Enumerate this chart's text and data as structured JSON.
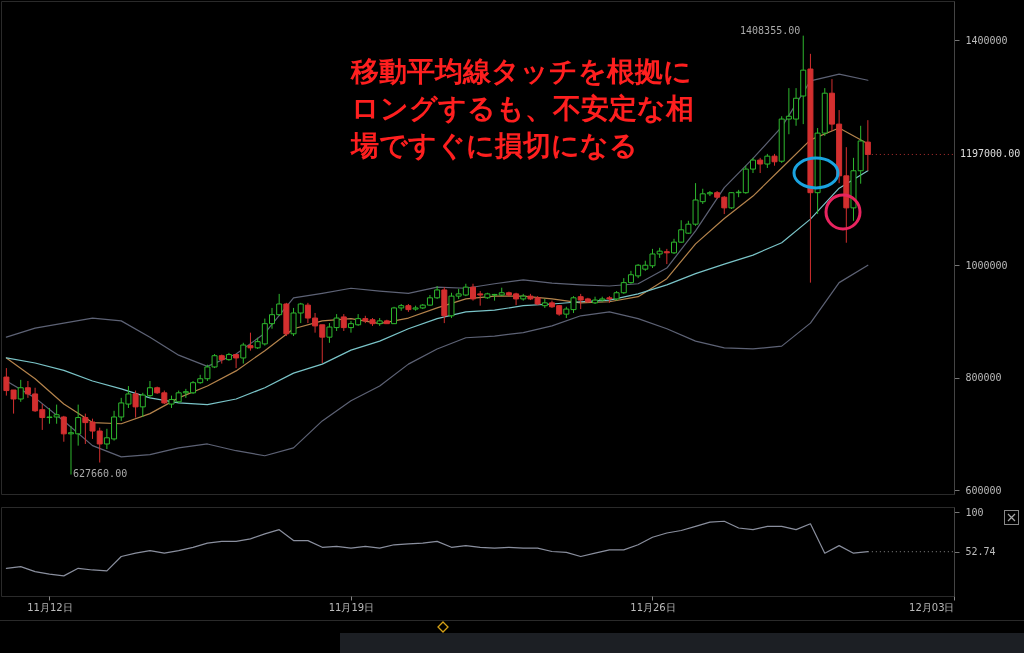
{
  "chart_data": [
    {
      "type": "candlestick",
      "x": [
        "--11-11T00:00",
        "--11-11T04:00",
        "--11-11T08:00",
        "--11-11T12:00",
        "--11-11T16:00",
        "--11-11T20:00",
        "--11-12T00:00",
        "--11-12T04:00",
        "--11-12T08:00",
        "--11-12T12:00",
        "--11-12T16:00",
        "--11-12T20:00",
        "--11-13T00:00",
        "--11-13T04:00",
        "--11-13T08:00",
        "--11-13T12:00",
        "--11-13T16:00",
        "--11-13T20:00",
        "--11-14T00:00",
        "--11-14T04:00",
        "--11-14T08:00",
        "--11-14T12:00",
        "--11-14T16:00",
        "--11-14T20:00",
        "--11-15T00:00",
        "--11-15T04:00",
        "--11-15T08:00",
        "--11-15T12:00",
        "--11-15T16:00",
        "--11-15T20:00",
        "--11-16T00:00",
        "--11-16T04:00",
        "--11-16T08:00",
        "--11-16T12:00",
        "--11-16T16:00",
        "--11-16T20:00",
        "--11-17T00:00",
        "--11-17T04:00",
        "--11-17T08:00",
        "--11-17T12:00",
        "--11-17T16:00",
        "--11-17T20:00",
        "--11-18T00:00",
        "--11-18T04:00",
        "--11-18T08:00",
        "--11-18T12:00",
        "--11-18T16:00",
        "--11-18T20:00",
        "--11-19T00:00",
        "--11-19T04:00",
        "--11-19T08:00",
        "--11-19T12:00",
        "--11-19T16:00",
        "--11-19T20:00",
        "--11-20T00:00",
        "--11-20T04:00",
        "--11-20T08:00",
        "--11-20T12:00",
        "--11-20T16:00",
        "--11-20T20:00",
        "--11-21T00:00",
        "--11-21T04:00",
        "--11-21T08:00",
        "--11-21T12:00",
        "--11-21T16:00",
        "--11-21T20:00",
        "--11-22T00:00",
        "--11-22T04:00",
        "--11-22T08:00",
        "--11-22T12:00",
        "--11-22T16:00",
        "--11-22T20:00",
        "--11-23T00:00",
        "--11-23T04:00",
        "--11-23T08:00",
        "--11-23T12:00",
        "--11-23T16:00",
        "--11-23T20:00",
        "--11-24T00:00",
        "--11-24T04:00",
        "--11-24T08:00",
        "--11-24T12:00",
        "--11-24T16:00",
        "--11-24T20:00",
        "--11-25T00:00",
        "--11-25T04:00",
        "--11-25T08:00",
        "--11-25T12:00",
        "--11-25T16:00",
        "--11-25T20:00",
        "--11-26T00:00",
        "--11-26T04:00",
        "--11-26T08:00",
        "--11-26T12:00",
        "--11-26T16:00",
        "--11-26T20:00",
        "--11-27T00:00",
        "--11-27T04:00",
        "--11-27T08:00",
        "--11-27T12:00",
        "--11-27T16:00",
        "--11-27T20:00",
        "--11-28T00:00",
        "--11-28T04:00",
        "--11-28T08:00",
        "--11-28T12:00",
        "--11-28T16:00",
        "--11-28T20:00",
        "--11-29T00:00",
        "--11-29T04:00",
        "--11-29T08:00",
        "--11-29T12:00",
        "--11-29T16:00",
        "--11-29T20:00",
        "--11-30T00:00",
        "--11-30T04:00",
        "--11-30T08:00",
        "--11-30T12:00",
        "--11-30T16:00",
        "--11-30T20:00",
        "--12-01T00:00"
      ],
      "ohlc": [
        [
          801000,
          817000,
          768000,
          777000
        ],
        [
          778000,
          778000,
          736000,
          762000
        ],
        [
          762000,
          796000,
          757000,
          782000
        ],
        [
          782000,
          794000,
          764000,
          771000
        ],
        [
          771000,
          782000,
          739000,
          741000
        ],
        [
          743000,
          753000,
          707000,
          729000
        ],
        [
          729000,
          746000,
          718000,
          730000
        ],
        [
          730000,
          752000,
          718000,
          734000
        ],
        [
          730000,
          732000,
          686000,
          700000
        ],
        [
          700000,
          714000,
          627660,
          702000
        ],
        [
          700000,
          752000,
          679000,
          729000
        ],
        [
          729000,
          736000,
          682000,
          720000
        ],
        [
          721000,
          727000,
          691000,
          705000
        ],
        [
          705000,
          711000,
          649000,
          682000
        ],
        [
          682000,
          709000,
          673000,
          693000
        ],
        [
          691000,
          741000,
          688000,
          730000
        ],
        [
          730000,
          764000,
          723000,
          755000
        ],
        [
          753000,
          785000,
          746000,
          771000
        ],
        [
          771000,
          777000,
          729000,
          748000
        ],
        [
          748000,
          773000,
          730000,
          769000
        ],
        [
          768000,
          794000,
          764000,
          782000
        ],
        [
          782000,
          784000,
          771000,
          773000
        ],
        [
          773000,
          777000,
          753000,
          755000
        ],
        [
          753000,
          768000,
          746000,
          761000
        ],
        [
          757000,
          777000,
          755000,
          773000
        ],
        [
          773000,
          780000,
          764000,
          775000
        ],
        [
          773000,
          794000,
          771000,
          791000
        ],
        [
          791000,
          805000,
          789000,
          798000
        ],
        [
          798000,
          823000,
          794000,
          819000
        ],
        [
          819000,
          842000,
          817000,
          839000
        ],
        [
          839000,
          841000,
          825000,
          832000
        ],
        [
          832000,
          844000,
          830000,
          841000
        ],
        [
          841000,
          842000,
          817000,
          835000
        ],
        [
          835000,
          862000,
          825000,
          858000
        ],
        [
          857000,
          880000,
          848000,
          853000
        ],
        [
          853000,
          871000,
          851000,
          864000
        ],
        [
          860000,
          905000,
          857000,
          896000
        ],
        [
          896000,
          924000,
          887000,
          912000
        ],
        [
          912000,
          949000,
          910000,
          931000
        ],
        [
          931000,
          933000,
          874000,
          878000
        ],
        [
          878000,
          924000,
          874000,
          915000
        ],
        [
          915000,
          933000,
          897000,
          931000
        ],
        [
          929000,
          933000,
          897000,
          906000
        ],
        [
          906000,
          915000,
          880000,
          892000
        ],
        [
          894000,
          894000,
          826000,
          872000
        ],
        [
          872000,
          897000,
          862000,
          890000
        ],
        [
          889000,
          913000,
          883000,
          906000
        ],
        [
          908000,
          913000,
          883000,
          889000
        ],
        [
          889000,
          901000,
          880000,
          896000
        ],
        [
          894000,
          913000,
          892000,
          905000
        ],
        [
          905000,
          910000,
          897000,
          901000
        ],
        [
          903000,
          906000,
          892000,
          896000
        ],
        [
          896000,
          906000,
          892000,
          901000
        ],
        [
          901000,
          903000,
          896000,
          896000
        ],
        [
          896000,
          926000,
          896000,
          924000
        ],
        [
          924000,
          931000,
          919000,
          928000
        ],
        [
          928000,
          931000,
          917000,
          921000
        ],
        [
          922000,
          928000,
          919000,
          924000
        ],
        [
          924000,
          931000,
          922000,
          929000
        ],
        [
          929000,
          947000,
          928000,
          942000
        ],
        [
          942000,
          963000,
          940000,
          956000
        ],
        [
          956000,
          961000,
          897000,
          910000
        ],
        [
          910000,
          951000,
          906000,
          945000
        ],
        [
          945000,
          958000,
          940000,
          949000
        ],
        [
          947000,
          967000,
          945000,
          961000
        ],
        [
          961000,
          967000,
          937000,
          940000
        ],
        [
          949000,
          954000,
          928000,
          947000
        ],
        [
          942000,
          951000,
          940000,
          949000
        ],
        [
          947000,
          949000,
          937000,
          948000
        ],
        [
          947000,
          960000,
          945000,
          951000
        ],
        [
          951000,
          953000,
          944000,
          947000
        ],
        [
          949000,
          951000,
          929000,
          940000
        ],
        [
          940000,
          949000,
          937000,
          945000
        ],
        [
          945000,
          949000,
          938000,
          940000
        ],
        [
          942000,
          945000,
          929000,
          931000
        ],
        [
          928000,
          940000,
          924000,
          933000
        ],
        [
          933000,
          937000,
          924000,
          926000
        ],
        [
          928000,
          929000,
          910000,
          913000
        ],
        [
          913000,
          926000,
          906000,
          922000
        ],
        [
          921000,
          945000,
          915000,
          942000
        ],
        [
          944000,
          949000,
          922000,
          938000
        ],
        [
          940000,
          942000,
          933000,
          935000
        ],
        [
          933000,
          944000,
          931000,
          938000
        ],
        [
          938000,
          944000,
          935000,
          940000
        ],
        [
          942000,
          945000,
          933000,
          940000
        ],
        [
          940000,
          954000,
          937000,
          951000
        ],
        [
          951000,
          977000,
          949000,
          969000
        ],
        [
          969000,
          990000,
          967000,
          983000
        ],
        [
          981000,
          1002000,
          977000,
          1000000
        ],
        [
          993000,
          1008000,
          990000,
          1000000
        ],
        [
          999000,
          1029000,
          995000,
          1020000
        ],
        [
          1020000,
          1031000,
          1013000,
          1025000
        ],
        [
          1024000,
          1029000,
          1002000,
          1022000
        ],
        [
          1022000,
          1047000,
          1020000,
          1041000
        ],
        [
          1041000,
          1080000,
          1040000,
          1063000
        ],
        [
          1057000,
          1079000,
          1056000,
          1073000
        ],
        [
          1073000,
          1146000,
          1070000,
          1116000
        ],
        [
          1113000,
          1136000,
          1109000,
          1127000
        ],
        [
          1127000,
          1132000,
          1123000,
          1129000
        ],
        [
          1129000,
          1132000,
          1118000,
          1121000
        ],
        [
          1121000,
          1123000,
          1091000,
          1102000
        ],
        [
          1102000,
          1130000,
          1100000,
          1129000
        ],
        [
          1129000,
          1134000,
          1121000,
          1130000
        ],
        [
          1129000,
          1177000,
          1127000,
          1171000
        ],
        [
          1171000,
          1191000,
          1164000,
          1187000
        ],
        [
          1187000,
          1191000,
          1164000,
          1180000
        ],
        [
          1180000,
          1198000,
          1173000,
          1194000
        ],
        [
          1194000,
          1198000,
          1177000,
          1184000
        ],
        [
          1185000,
          1265000,
          1182000,
          1260000
        ],
        [
          1260000,
          1315000,
          1233000,
          1265000
        ],
        [
          1260000,
          1315000,
          1248000,
          1297000
        ],
        [
          1301000,
          1408355,
          1251000,
          1347000
        ],
        [
          1349000,
          1376000,
          969000,
          1129000
        ],
        [
          1129000,
          1244000,
          1091000,
          1235000
        ],
        [
          1235000,
          1315000,
          1230000,
          1306000
        ],
        [
          1306000,
          1331000,
          1239000,
          1251000
        ],
        [
          1251000,
          1276000,
          1146000,
          1159000
        ],
        [
          1159000,
          1210000,
          1040000,
          1102000
        ],
        [
          1102000,
          1191000,
          1079000,
          1168000
        ],
        [
          1168000,
          1248000,
          1145000,
          1221000
        ],
        [
          1219000,
          1258000,
          1168000,
          1197000
        ]
      ],
      "colors": [
        "#d32f2f",
        "#d32f2f",
        "#2eb82e",
        "#d32f2f",
        "#d32f2f",
        "#d32f2f",
        "#2eb82e",
        "#2eb82e",
        "#d32f2f",
        "#2eb82e",
        "#2eb82e",
        "#d32f2f",
        "#d32f2f",
        "#d32f2f",
        "#2eb82e",
        "#2eb82e",
        "#2eb82e",
        "#2eb82e",
        "#d32f2f",
        "#2eb82e",
        "#2eb82e",
        "#d32f2f",
        "#d32f2f",
        "#2eb82e",
        "#2eb82e",
        "#2eb82e",
        "#2eb82e",
        "#2eb82e",
        "#2eb82e",
        "#2eb82e",
        "#d32f2f",
        "#2eb82e",
        "#d32f2f",
        "#2eb82e",
        "#d32f2f",
        "#2eb82e",
        "#2eb82e",
        "#2eb82e",
        "#2eb82e",
        "#d32f2f",
        "#2eb82e",
        "#2eb82e",
        "#d32f2f",
        "#d32f2f",
        "#d32f2f",
        "#2eb82e",
        "#2eb82e",
        "#d32f2f",
        "#2eb82e",
        "#2eb82e",
        "#d32f2f",
        "#d32f2f",
        "#2eb82e",
        "#d32f2f",
        "#2eb82e",
        "#2eb82e",
        "#d32f2f",
        "#2eb82e",
        "#2eb82e",
        "#2eb82e",
        "#2eb82e",
        "#d32f2f",
        "#2eb82e",
        "#2eb82e",
        "#2eb82e",
        "#d32f2f",
        "#d32f2f",
        "#2eb82e",
        "#2eb82e",
        "#2eb82e",
        "#d32f2f",
        "#d32f2f",
        "#2eb82e",
        "#d32f2f",
        "#d32f2f",
        "#2eb82e",
        "#d32f2f",
        "#d32f2f",
        "#2eb82e",
        "#2eb82e",
        "#d32f2f",
        "#d32f2f",
        "#2eb82e",
        "#2eb82e",
        "#d32f2f",
        "#2eb82e",
        "#2eb82e",
        "#2eb82e",
        "#2eb82e",
        "#2eb82e",
        "#2eb82e",
        "#2eb82e",
        "#d32f2f",
        "#2eb82e",
        "#2eb82e",
        "#2eb82e",
        "#2eb82e",
        "#2eb82e",
        "#2eb82e",
        "#d32f2f",
        "#d32f2f",
        "#2eb82e",
        "#2eb82e",
        "#2eb82e",
        "#2eb82e",
        "#d32f2f",
        "#2eb82e",
        "#d32f2f",
        "#2eb82e",
        "#2eb82e",
        "#2eb82e",
        "#2eb82e",
        "#d32f2f",
        "#2eb82e",
        "#2eb82e",
        "#d32f2f",
        "#d32f2f",
        "#d32f2f",
        "#2eb82e",
        "#2eb82e",
        "#d32f2f"
      ],
      "series": [
        {
          "type": "line",
          "color": "#5d6275",
          "x": [
            "--11-11T00:00",
            "--11-11T16:00",
            "--11-12T08:00",
            "--11-13T00:00",
            "--11-13T16:00",
            "--11-14T08:00",
            "--11-15T00:00",
            "--11-15T16:00",
            "--11-16T08:00",
            "--11-17T00:00",
            "--11-17T16:00",
            "--11-18T08:00",
            "--11-19T00:00",
            "--11-19T16:00",
            "--11-20T08:00",
            "--11-21T00:00",
            "--11-21T16:00",
            "--11-22T08:00",
            "--11-23T00:00",
            "--11-23T16:00",
            "--11-24T08:00",
            "--11-25T00:00",
            "--11-25T16:00",
            "--11-26T08:00",
            "--11-27T00:00",
            "--11-27T16:00",
            "--11-28T08:00",
            "--11-29T00:00",
            "--11-29T16:00",
            "--11-30T08:00",
            "--12-01T00:00"
          ],
          "values": [
            872000,
            888000,
            897000,
            906000,
            901000,
            872000,
            840000,
            820000,
            842000,
            879000,
            942000,
            950000,
            959000,
            954000,
            950000,
            961000,
            959000,
            967000,
            974000,
            968000,
            965000,
            963000,
            967000,
            995000,
            1061000,
            1138000,
            1190000,
            1246000,
            1328000,
            1340000,
            1329000
          ]
        },
        {
          "type": "line",
          "color": "#5d6275",
          "x": [
            "--11-11T00:00",
            "--11-11T16:00",
            "--11-12T08:00",
            "--11-13T00:00",
            "--11-13T16:00",
            "--11-14T08:00",
            "--11-15T00:00",
            "--11-15T16:00",
            "--11-16T08:00",
            "--11-17T00:00",
            "--11-17T16:00",
            "--11-18T08:00",
            "--11-19T00:00",
            "--11-19T16:00",
            "--11-20T08:00",
            "--11-21T00:00",
            "--11-21T16:00",
            "--11-22T08:00",
            "--11-23T00:00",
            "--11-23T16:00",
            "--11-24T08:00",
            "--11-25T00:00",
            "--11-25T16:00",
            "--11-26T08:00",
            "--11-27T00:00",
            "--11-27T16:00",
            "--11-28T08:00",
            "--11-29T00:00",
            "--11-29T16:00",
            "--11-30T08:00",
            "--12-01T00:00"
          ],
          "values": [
            794000,
            764000,
            723000,
            679000,
            659000,
            663000,
            675000,
            682000,
            670000,
            661000,
            675000,
            723000,
            759000,
            785000,
            824000,
            851000,
            871000,
            874000,
            880000,
            892000,
            910000,
            917000,
            905000,
            887000,
            865000,
            853000,
            851000,
            856000,
            897000,
            969000,
            1000000
          ]
        },
        {
          "type": "line",
          "color": "#b5844c",
          "x": [
            "--11-11T00:00",
            "--11-11T16:00",
            "--11-12T08:00",
            "--11-13T00:00",
            "--11-13T16:00",
            "--11-14T08:00",
            "--11-15T00:00",
            "--11-15T16:00",
            "--11-16T08:00",
            "--11-17T00:00",
            "--11-17T16:00",
            "--11-18T08:00",
            "--11-19T00:00",
            "--11-19T16:00",
            "--11-20T08:00",
            "--11-21T00:00",
            "--11-21T16:00",
            "--11-22T08:00",
            "--11-23T00:00",
            "--11-23T16:00",
            "--11-24T08:00",
            "--11-25T00:00",
            "--11-25T16:00",
            "--11-26T08:00",
            "--11-27T00:00",
            "--11-27T16:00",
            "--11-28T08:00",
            "--11-29T00:00",
            "--11-29T16:00",
            "--11-30T08:00",
            "--12-01T00:00"
          ],
          "values": [
            835000,
            798000,
            753000,
            720000,
            718000,
            736000,
            764000,
            785000,
            812000,
            848000,
            887000,
            901000,
            905000,
            896000,
            906000,
            924000,
            940000,
            945000,
            945000,
            940000,
            933000,
            935000,
            944000,
            976000,
            1038000,
            1083000,
            1123000,
            1173000,
            1223000,
            1244000,
            1216000
          ]
        },
        {
          "type": "line",
          "color": "#7ac4c8",
          "x": [
            "--11-11T00:00",
            "--11-11T16:00",
            "--11-12T08:00",
            "--11-13T00:00",
            "--11-13T16:00",
            "--11-14T08:00",
            "--11-15T00:00",
            "--11-15T16:00",
            "--11-16T08:00",
            "--11-17T00:00",
            "--11-17T16:00",
            "--11-18T08:00",
            "--11-19T00:00",
            "--11-19T16:00",
            "--11-20T08:00",
            "--11-21T00:00",
            "--11-21T16:00",
            "--11-22T08:00",
            "--11-23T00:00",
            "--11-23T16:00",
            "--11-24T08:00",
            "--11-25T00:00",
            "--11-25T16:00",
            "--11-26T08:00",
            "--11-27T00:00",
            "--11-27T16:00",
            "--11-28T08:00",
            "--11-29T00:00",
            "--11-29T16:00",
            "--11-30T08:00",
            "--12-01T00:00"
          ],
          "values": [
            835000,
            826000,
            813000,
            794000,
            780000,
            764000,
            755000,
            752000,
            762000,
            782000,
            808000,
            824000,
            849000,
            865000,
            887000,
            905000,
            917000,
            920000,
            928000,
            931000,
            935000,
            938000,
            949000,
            965000,
            985000,
            1002000,
            1018000,
            1040000,
            1082000,
            1137000,
            1168000
          ]
        }
      ],
      "xlim": [
        "--11-10T21:00",
        "--12-03T00:00"
      ],
      "ylim": [
        593000,
        1470000
      ],
      "yticks": [
        600000,
        800000,
        1000000,
        1400000
      ],
      "tick_labels": "y",
      "ref_lines": [
        {
          "axis": "y",
          "value": 1197000,
          "label": "1197000.00",
          "color": "#b03030",
          "line_style": "dotted"
        }
      ],
      "annotations": [
        "移動平均線タッチを根拠にロングするも、不安定な相場ですぐに損切になる",
        {
          "text": "1408355.00",
          "x": "--11-29T12:00",
          "y": 1408355
        },
        {
          "text": "627660.00",
          "x": "--11-12T12:00",
          "y": 627660
        }
      ]
    },
    {
      "type": "line",
      "x": [
        "--11-11T00:00",
        "--11-11T08:00",
        "--11-11T16:00",
        "--11-12T00:00",
        "--11-12T08:00",
        "--11-12T16:00",
        "--11-13T00:00",
        "--11-13T08:00",
        "--11-13T16:00",
        "--11-14T00:00",
        "--11-14T08:00",
        "--11-14T16:00",
        "--11-15T00:00",
        "--11-15T08:00",
        "--11-15T16:00",
        "--11-16T00:00",
        "--11-16T08:00",
        "--11-16T16:00",
        "--11-17T00:00",
        "--11-17T08:00",
        "--11-17T16:00",
        "--11-18T00:00",
        "--11-18T08:00",
        "--11-18T16:00",
        "--11-19T00:00",
        "--11-19T08:00",
        "--11-19T16:00",
        "--11-20T00:00",
        "--11-20T08:00",
        "--11-20T16:00",
        "--11-21T00:00",
        "--11-21T08:00",
        "--11-21T16:00",
        "--11-22T00:00",
        "--11-22T08:00",
        "--11-22T16:00",
        "--11-23T00:00",
        "--11-23T08:00",
        "--11-23T16:00",
        "--11-24T00:00",
        "--11-24T08:00",
        "--11-24T16:00",
        "--11-25T00:00",
        "--11-25T08:00",
        "--11-25T16:00",
        "--11-26T00:00",
        "--11-26T08:00",
        "--11-26T16:00",
        "--11-27T00:00",
        "--11-27T08:00",
        "--11-27T16:00",
        "--11-28T00:00",
        "--11-28T08:00",
        "--11-28T16:00",
        "--11-29T00:00",
        "--11-29T08:00",
        "--11-29T16:00",
        "--11-30T00:00",
        "--11-30T08:00",
        "--11-30T16:00",
        "--12-01T00:00"
      ],
      "series": [
        {
          "color": "#8a8f9e",
          "values": [
            33,
            35,
            29,
            26,
            24,
            33,
            31,
            30,
            47,
            51,
            54,
            51,
            54,
            58,
            63,
            65,
            65,
            68,
            74,
            79,
            66,
            66,
            58,
            59,
            57,
            59,
            57,
            61,
            62,
            63,
            65,
            58,
            60,
            58,
            57,
            58,
            57,
            57,
            53,
            52,
            47,
            51,
            55,
            55,
            61,
            70,
            75,
            78,
            83,
            88,
            89,
            81,
            79,
            83,
            83,
            79,
            86,
            51,
            60,
            51,
            52.74
          ]
        }
      ],
      "xlim": [
        "--11-10T21:00",
        "--12-03T00:00"
      ],
      "xticks": [
        {
          "value": "--11-12",
          "label": "11月12日"
        },
        {
          "value": "--11-19",
          "label": "11月19日"
        },
        {
          "value": "--11-26",
          "label": "11月26日"
        },
        {
          "value": "--12-03",
          "label": "12月03日"
        }
      ],
      "ylim": [
        0,
        106
      ],
      "yticks": [
        52.74,
        100
      ],
      "ref_lines": [
        {
          "axis": "y",
          "value": 52.74,
          "color": "#888888",
          "line_style": "dotted"
        }
      ]
    }
  ]
}
